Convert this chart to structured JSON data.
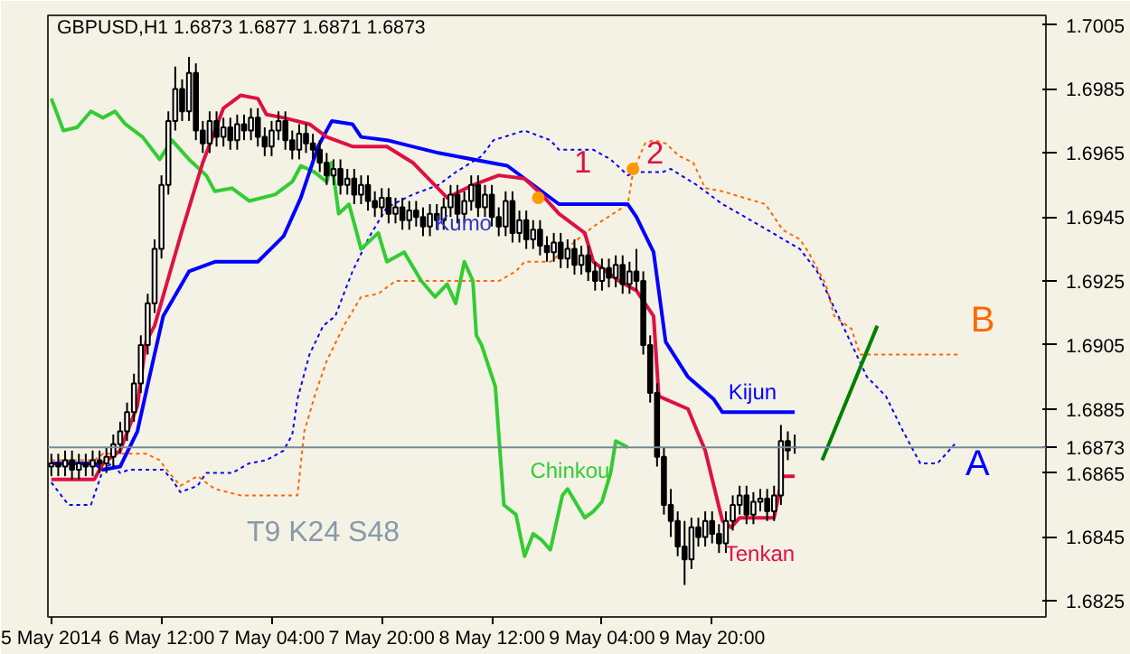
{
  "chart_data": {
    "type": "candlestick",
    "title": "GBPUSD,H1  1.6873 1.6877 1.6871 1.6873",
    "x": [
      "2014-05-05T20:00",
      "2014-05-05T21:00",
      "2014-05-05T22:00",
      "2014-05-05T23:00",
      "2014-05-06T00:00",
      "2014-05-06T01:00",
      "2014-05-06T02:00",
      "2014-05-06T03:00",
      "2014-05-06T04:00",
      "2014-05-06T05:00",
      "2014-05-06T06:00",
      "2014-05-06T07:00",
      "2014-05-06T08:00",
      "2014-05-06T09:00",
      "2014-05-06T10:00",
      "2014-05-06T11:00",
      "2014-05-06T12:00",
      "2014-05-06T13:00",
      "2014-05-06T14:00",
      "2014-05-06T15:00",
      "2014-05-06T16:00",
      "2014-05-06T17:00",
      "2014-05-06T18:00",
      "2014-05-06T19:00",
      "2014-05-06T20:00",
      "2014-05-06T21:00",
      "2014-05-06T22:00",
      "2014-05-06T23:00",
      "2014-05-07T00:00",
      "2014-05-07T01:00",
      "2014-05-07T02:00",
      "2014-05-07T03:00",
      "2014-05-07T04:00",
      "2014-05-07T05:00",
      "2014-05-07T06:00",
      "2014-05-07T07:00",
      "2014-05-07T08:00",
      "2014-05-07T09:00",
      "2014-05-07T10:00",
      "2014-05-07T11:00",
      "2014-05-07T12:00",
      "2014-05-07T13:00",
      "2014-05-07T14:00",
      "2014-05-07T15:00",
      "2014-05-07T16:00",
      "2014-05-07T17:00",
      "2014-05-07T18:00",
      "2014-05-07T19:00",
      "2014-05-07T20:00",
      "2014-05-07T21:00",
      "2014-05-07T22:00",
      "2014-05-07T23:00",
      "2014-05-08T00:00",
      "2014-05-08T01:00",
      "2014-05-08T02:00",
      "2014-05-08T03:00",
      "2014-05-08T04:00",
      "2014-05-08T05:00",
      "2014-05-08T06:00",
      "2014-05-08T07:00",
      "2014-05-08T08:00",
      "2014-05-08T09:00",
      "2014-05-08T10:00",
      "2014-05-08T11:00",
      "2014-05-08T12:00",
      "2014-05-08T13:00",
      "2014-05-08T14:00",
      "2014-05-08T15:00",
      "2014-05-08T16:00",
      "2014-05-08T17:00",
      "2014-05-08T18:00",
      "2014-05-08T19:00",
      "2014-05-08T20:00",
      "2014-05-08T21:00",
      "2014-05-08T22:00",
      "2014-05-08T23:00",
      "2014-05-09T00:00",
      "2014-05-09T01:00",
      "2014-05-09T02:00",
      "2014-05-09T03:00",
      "2014-05-09T04:00",
      "2014-05-09T05:00",
      "2014-05-09T06:00",
      "2014-05-09T07:00",
      "2014-05-09T08:00",
      "2014-05-09T09:00",
      "2014-05-09T10:00",
      "2014-05-09T11:00",
      "2014-05-09T12:00",
      "2014-05-09T13:00",
      "2014-05-09T14:00",
      "2014-05-09T15:00",
      "2014-05-09T16:00",
      "2014-05-09T17:00",
      "2014-05-09T18:00",
      "2014-05-09T19:00",
      "2014-05-09T20:00",
      "2014-05-09T21:00",
      "2014-05-09T22:00",
      "2014-05-09T23:00",
      "2014-05-10T00:00",
      "2014-05-10T01:00",
      "2014-05-10T02:00",
      "2014-05-10T03:00",
      "2014-05-10T04:00",
      "2014-05-10T05:00",
      "2014-05-10T06:00",
      "2014-05-10T07:00",
      "2014-05-10T08:00"
    ],
    "ohlc": [
      [
        1.6867,
        1.6871,
        1.6864,
        1.6868
      ],
      [
        1.6868,
        1.6871,
        1.6864,
        1.6867
      ],
      [
        1.6867,
        1.6872,
        1.6864,
        1.6869
      ],
      [
        1.6869,
        1.6872,
        1.6863,
        1.6866
      ],
      [
        1.6866,
        1.6871,
        1.6863,
        1.6868
      ],
      [
        1.6868,
        1.6871,
        1.6864,
        1.6867
      ],
      [
        1.6867,
        1.6872,
        1.6864,
        1.6869
      ],
      [
        1.6869,
        1.6872,
        1.6865,
        1.6868
      ],
      [
        1.6868,
        1.6873,
        1.6865,
        1.687
      ],
      [
        1.687,
        1.6877,
        1.6867,
        1.6874
      ],
      [
        1.6874,
        1.6881,
        1.6871,
        1.6878
      ],
      [
        1.6878,
        1.6887,
        1.6875,
        1.6884
      ],
      [
        1.6884,
        1.6896,
        1.6881,
        1.6893
      ],
      [
        1.6893,
        1.6908,
        1.689,
        1.6905
      ],
      [
        1.6905,
        1.6921,
        1.6902,
        1.6918
      ],
      [
        1.6918,
        1.6938,
        1.6915,
        1.6935
      ],
      [
        1.6935,
        1.6958,
        1.6932,
        1.6955
      ],
      [
        1.6955,
        1.6978,
        1.6952,
        1.6975
      ],
      [
        1.6975,
        1.6992,
        1.6972,
        1.6985
      ],
      [
        1.6985,
        1.6988,
        1.6975,
        1.6978
      ],
      [
        1.6978,
        1.6995,
        1.6975,
        1.699
      ],
      [
        1.699,
        1.6993,
        1.6969,
        1.6972
      ],
      [
        1.6972,
        1.6975,
        1.6965,
        1.6968
      ],
      [
        1.6968,
        1.6978,
        1.6965,
        1.6975
      ],
      [
        1.6975,
        1.6978,
        1.6967,
        1.697
      ],
      [
        1.697,
        1.6976,
        1.6967,
        1.6973
      ],
      [
        1.6973,
        1.6976,
        1.6966,
        1.6969
      ],
      [
        1.6969,
        1.6977,
        1.6966,
        1.6974
      ],
      [
        1.6974,
        1.6977,
        1.6969,
        1.6972
      ],
      [
        1.6972,
        1.6979,
        1.6969,
        1.6976
      ],
      [
        1.6976,
        1.6979,
        1.6967,
        1.697
      ],
      [
        1.697,
        1.6973,
        1.6964,
        1.6967
      ],
      [
        1.6967,
        1.6975,
        1.6964,
        1.6972
      ],
      [
        1.6972,
        1.6978,
        1.6969,
        1.6975
      ],
      [
        1.6975,
        1.6978,
        1.6966,
        1.6969
      ],
      [
        1.6969,
        1.6972,
        1.6963,
        1.6966
      ],
      [
        1.6966,
        1.6974,
        1.6963,
        1.6971
      ],
      [
        1.6971,
        1.6974,
        1.6965,
        1.6968
      ],
      [
        1.6968,
        1.6971,
        1.6963,
        1.6966
      ],
      [
        1.6966,
        1.6969,
        1.6959,
        1.6962
      ],
      [
        1.6962,
        1.6965,
        1.6955,
        1.6958
      ],
      [
        1.6958,
        1.6963,
        1.6955,
        1.696
      ],
      [
        1.696,
        1.6963,
        1.6952,
        1.6955
      ],
      [
        1.6955,
        1.696,
        1.6952,
        1.6957
      ],
      [
        1.6957,
        1.696,
        1.6949,
        1.6952
      ],
      [
        1.6952,
        1.6958,
        1.6949,
        1.6955
      ],
      [
        1.6955,
        1.6958,
        1.6947,
        1.695
      ],
      [
        1.695,
        1.6953,
        1.6945,
        1.6948
      ],
      [
        1.6948,
        1.6954,
        1.6945,
        1.6951
      ],
      [
        1.6951,
        1.6954,
        1.6943,
        1.6946
      ],
      [
        1.6946,
        1.6951,
        1.6943,
        1.6948
      ],
      [
        1.6948,
        1.6951,
        1.6941,
        1.6944
      ],
      [
        1.6944,
        1.695,
        1.6941,
        1.6947
      ],
      [
        1.6947,
        1.695,
        1.6942,
        1.6945
      ],
      [
        1.6945,
        1.6948,
        1.6939,
        1.6942
      ],
      [
        1.6942,
        1.6949,
        1.6939,
        1.6946
      ],
      [
        1.6946,
        1.6949,
        1.6941,
        1.6944
      ],
      [
        1.6944,
        1.6951,
        1.6941,
        1.6948
      ],
      [
        1.6948,
        1.6955,
        1.6945,
        1.6952
      ],
      [
        1.6952,
        1.6955,
        1.6943,
        1.6946
      ],
      [
        1.6946,
        1.6953,
        1.6943,
        1.695
      ],
      [
        1.695,
        1.6958,
        1.6947,
        1.6955
      ],
      [
        1.6955,
        1.6958,
        1.6945,
        1.6948
      ],
      [
        1.6948,
        1.6955,
        1.6945,
        1.6952
      ],
      [
        1.6952,
        1.6955,
        1.6942,
        1.6945
      ],
      [
        1.6945,
        1.6948,
        1.6939,
        1.6942
      ],
      [
        1.6942,
        1.6953,
        1.6939,
        1.695
      ],
      [
        1.695,
        1.6953,
        1.6937,
        1.694
      ],
      [
        1.694,
        1.6947,
        1.6937,
        1.6944
      ],
      [
        1.6944,
        1.6947,
        1.6935,
        1.6938
      ],
      [
        1.6938,
        1.6944,
        1.6935,
        1.6941
      ],
      [
        1.6941,
        1.6944,
        1.6933,
        1.6936
      ],
      [
        1.6936,
        1.6939,
        1.6931,
        1.6934
      ],
      [
        1.6934,
        1.694,
        1.6931,
        1.6937
      ],
      [
        1.6937,
        1.694,
        1.6929,
        1.6932
      ],
      [
        1.6932,
        1.6938,
        1.6929,
        1.6935
      ],
      [
        1.6935,
        1.6938,
        1.6927,
        1.693
      ],
      [
        1.693,
        1.6936,
        1.6927,
        1.6933
      ],
      [
        1.6933,
        1.6936,
        1.6925,
        1.6928
      ],
      [
        1.6928,
        1.6931,
        1.6922,
        1.6925
      ],
      [
        1.6925,
        1.6932,
        1.6922,
        1.6929
      ],
      [
        1.6929,
        1.6932,
        1.6923,
        1.6926
      ],
      [
        1.6926,
        1.6933,
        1.6923,
        1.693
      ],
      [
        1.693,
        1.6933,
        1.6921,
        1.6924
      ],
      [
        1.6924,
        1.6931,
        1.6921,
        1.6928
      ],
      [
        1.6928,
        1.6935,
        1.6922,
        1.6925
      ],
      [
        1.6925,
        1.6928,
        1.6902,
        1.6905
      ],
      [
        1.6905,
        1.6908,
        1.6887,
        1.689
      ],
      [
        1.689,
        1.6893,
        1.6867,
        1.687
      ],
      [
        1.687,
        1.6873,
        1.6852,
        1.6855
      ],
      [
        1.6855,
        1.686,
        1.6845,
        1.685
      ],
      [
        1.685,
        1.6853,
        1.6839,
        1.6842
      ],
      [
        1.6842,
        1.685,
        1.683,
        1.6838
      ],
      [
        1.6838,
        1.6851,
        1.6835,
        1.6848
      ],
      [
        1.6848,
        1.6851,
        1.6842,
        1.6845
      ],
      [
        1.6845,
        1.6853,
        1.6842,
        1.685
      ],
      [
        1.685,
        1.6853,
        1.6843,
        1.6846
      ],
      [
        1.6846,
        1.6849,
        1.684,
        1.6843
      ],
      [
        1.6843,
        1.6853,
        1.684,
        1.685
      ],
      [
        1.685,
        1.6858,
        1.6847,
        1.6855
      ],
      [
        1.6855,
        1.6861,
        1.6852,
        1.6858
      ],
      [
        1.6858,
        1.6861,
        1.6849,
        1.6852
      ],
      [
        1.6852,
        1.6859,
        1.6849,
        1.6856
      ],
      [
        1.6856,
        1.686,
        1.6853,
        1.6857
      ],
      [
        1.6857,
        1.686,
        1.685,
        1.6853
      ],
      [
        1.6853,
        1.6861,
        1.685,
        1.6858
      ],
      [
        1.6858,
        1.688,
        1.6855,
        1.6875
      ],
      [
        1.6875,
        1.6878,
        1.6869,
        1.6872
      ],
      [
        1.6873,
        1.6877,
        1.6871,
        1.6873
      ]
    ],
    "series": [
      {
        "name": "A",
        "type": "line",
        "color": "#0000ff",
        "line_style": "dashed",
        "x": [
          "2014-05-05T20:00",
          "2014-05-05T22:30",
          "2014-05-06T01:45",
          "2014-05-06T03:30",
          "2014-05-06T04:45",
          "2014-05-06T06:00",
          "2014-05-06T07:15",
          "2014-05-06T12:15",
          "2014-05-06T13:30",
          "2014-05-06T14:45",
          "2014-05-06T17:15",
          "2014-05-06T18:30",
          "2014-05-06T22:15",
          "2014-05-07T00:45",
          "2014-05-07T03:15",
          "2014-05-07T05:45",
          "2014-05-07T07:00",
          "2014-05-07T07:45",
          "2014-05-07T09:30",
          "2014-05-07T11:30",
          "2014-05-07T13:15",
          "2014-05-07T15:45",
          "2014-05-07T18:15",
          "2014-05-07T20:45",
          "2014-05-08T00:30",
          "2014-05-08T04:15",
          "2014-05-08T06:45",
          "2014-05-08T10:30",
          "2014-05-08T12:15",
          "2014-05-08T16:45",
          "2014-05-08T20:30",
          "2014-05-08T21:45",
          "2014-05-09T00:15",
          "2014-05-09T02:45",
          "2014-05-09T05:15",
          "2014-05-09T07:45",
          "2014-05-09T09:00",
          "2014-05-09T11:30",
          "2014-05-09T12:45",
          "2014-05-09T14:00",
          "2014-05-09T17:45",
          "2014-05-09T21:30",
          "2014-05-10T00:00",
          "2014-05-10T08:45",
          "2014-05-10T11:15",
          "2014-05-10T13:00",
          "2014-05-10T15:00",
          "2014-05-10T18:30",
          "2014-05-10T21:15",
          "2014-05-10T23:45",
          "2014-05-11T02:15",
          "2014-05-11T04:45",
          "2014-05-11T07:15"
        ],
        "values": [
          1.6862,
          1.6855,
          1.6855,
          1.6866,
          1.6868,
          1.6865,
          1.6866,
          1.6866,
          1.6863,
          1.6859,
          1.6861,
          1.6865,
          1.6865,
          1.6868,
          1.6869,
          1.6872,
          1.6877,
          1.6888,
          1.6902,
          1.6911,
          1.6914,
          1.6928,
          1.6939,
          1.6948,
          1.6952,
          1.6955,
          1.6959,
          1.6964,
          1.6969,
          1.6972,
          1.6969,
          1.6966,
          1.6966,
          1.6966,
          1.6963,
          1.6958,
          1.6959,
          1.6959,
          1.6959,
          1.696,
          1.6955,
          1.6949,
          1.6946,
          1.6935,
          1.6928,
          1.692,
          1.6911,
          1.6895,
          1.6889,
          1.6878,
          1.6868,
          1.6868,
          1.6874
        ]
      },
      {
        "name": "B",
        "type": "line",
        "color": "#ff6600",
        "line_style": "dashed",
        "x": [
          "2014-05-05T20:00",
          "2014-05-06T02:15",
          "2014-05-06T03:30",
          "2014-05-06T09:45",
          "2014-05-06T11:45",
          "2014-05-06T12:45",
          "2014-05-06T14:45",
          "2014-05-06T17:15",
          "2014-05-06T19:45",
          "2014-05-06T23:30",
          "2014-05-07T07:45",
          "2014-05-07T08:45",
          "2014-05-07T10:15",
          "2014-05-07T12:00",
          "2014-05-07T14:30",
          "2014-05-07T17:00",
          "2014-05-07T19:30",
          "2014-05-07T22:00",
          "2014-05-08T13:00",
          "2014-05-08T15:30",
          "2014-05-08T16:45",
          "2014-05-08T20:30",
          "2014-05-09T02:45",
          "2014-05-09T07:45",
          "2014-05-09T08:30",
          "2014-05-09T10:15",
          "2014-05-09T11:30",
          "2014-05-09T13:15",
          "2014-05-09T15:15",
          "2014-05-09T17:15",
          "2014-05-09T19:00",
          "2014-05-09T21:30",
          "2014-05-10T03:45",
          "2014-05-10T06:15",
          "2014-05-10T08:45",
          "2014-05-10T10:00",
          "2014-05-10T12:30",
          "2014-05-10T13:45",
          "2014-05-10T16:15",
          "2014-05-10T17:30",
          "2014-05-11T08:00"
        ],
        "values": [
          1.6869,
          1.6869,
          1.6871,
          1.6871,
          1.6869,
          1.6866,
          1.6861,
          1.6864,
          1.686,
          1.6858,
          1.6858,
          1.6878,
          1.6889,
          1.69,
          1.6911,
          1.692,
          1.6921,
          1.6925,
          1.6925,
          1.6928,
          1.6931,
          1.6931,
          1.6942,
          1.6949,
          1.6959,
          1.6968,
          1.6969,
          1.6968,
          1.6964,
          1.6962,
          1.6954,
          1.6953,
          1.6949,
          1.6941,
          1.6938,
          1.6934,
          1.6924,
          1.6914,
          1.691,
          1.6902,
          1.6902
        ]
      },
      {
        "name": "Chinkou",
        "type": "line",
        "color": "#33cc33",
        "x": [
          "2014-05-05T20:00",
          "2014-05-05T21:45",
          "2014-05-05T23:45",
          "2014-05-06T01:45",
          "2014-05-06T03:30",
          "2014-05-06T05:15",
          "2014-05-06T06:45",
          "2014-05-06T09:15",
          "2014-05-06T11:45",
          "2014-05-06T13:30",
          "2014-05-06T16:00",
          "2014-05-06T18:30",
          "2014-05-06T19:45",
          "2014-05-06T22:15",
          "2014-05-07T00:45",
          "2014-05-07T04:30",
          "2014-05-07T07:00",
          "2014-05-07T08:15",
          "2014-05-07T10:15",
          "2014-05-07T12:00",
          "2014-05-07T12:45",
          "2014-05-07T13:45",
          "2014-05-07T15:15",
          "2014-05-07T17:00",
          "2014-05-07T19:30",
          "2014-05-07T20:45",
          "2014-05-07T23:15",
          "2014-05-08T01:45",
          "2014-05-08T03:45",
          "2014-05-08T05:30",
          "2014-05-08T06:45",
          "2014-05-08T08:00",
          "2014-05-08T09:15",
          "2014-05-08T09:45",
          "2014-05-08T10:30",
          "2014-05-08T12:30",
          "2014-05-08T13:45",
          "2014-05-08T15:30",
          "2014-05-08T16:45",
          "2014-05-08T18:00",
          "2014-05-08T19:15",
          "2014-05-08T20:30",
          "2014-05-08T22:15",
          "2014-05-08T23:00",
          "2014-05-09T01:30",
          "2014-05-09T02:45",
          "2014-05-09T04:00",
          "2014-05-09T05:15",
          "2014-05-09T06:00",
          "2014-05-09T07:45"
        ],
        "values": [
          1.6982,
          1.6972,
          1.6973,
          1.6978,
          1.6976,
          1.6978,
          1.6974,
          1.697,
          1.6963,
          1.6969,
          1.6963,
          1.6958,
          1.6953,
          1.6954,
          1.695,
          1.6952,
          1.6956,
          1.6961,
          1.6959,
          1.6956,
          1.6962,
          1.6946,
          1.6949,
          1.6935,
          1.694,
          1.6931,
          1.6934,
          1.6925,
          1.692,
          1.6924,
          1.6918,
          1.6931,
          1.6925,
          1.6908,
          1.6905,
          1.6892,
          1.6855,
          1.6852,
          1.6839,
          1.6846,
          1.6844,
          1.6841,
          1.6858,
          1.686,
          1.6851,
          1.6853,
          1.6856,
          1.6865,
          1.6875,
          1.6873
        ]
      },
      {
        "name": "Kijun",
        "type": "line",
        "color": "#0000ff",
        "x": [
          "2014-05-05T20:00",
          "2014-05-06T02:15",
          "2014-05-06T03:30",
          "2014-05-06T06:00",
          "2014-05-06T08:30",
          "2014-05-06T10:15",
          "2014-05-06T12:15",
          "2014-05-06T16:00",
          "2014-05-06T19:45",
          "2014-05-07T02:00",
          "2014-05-07T05:45",
          "2014-05-07T08:15",
          "2014-05-07T10:45",
          "2014-05-07T12:45",
          "2014-05-07T15:45",
          "2014-05-07T17:00",
          "2014-05-07T20:45",
          "2014-05-08T04:15",
          "2014-05-08T11:45",
          "2014-05-08T14:15",
          "2014-05-08T18:00",
          "2014-05-08T21:45",
          "2014-05-09T07:45",
          "2014-05-09T09:00",
          "2014-05-09T11:30",
          "2014-05-09T13:15",
          "2014-05-09T16:30",
          "2014-05-09T20:15",
          "2014-05-09T21:30",
          "2014-05-10T08:00"
        ],
        "values": [
          1.6868,
          1.6868,
          1.6866,
          1.6867,
          1.6878,
          1.6895,
          1.6914,
          1.6928,
          1.6931,
          1.6931,
          1.6939,
          1.6951,
          1.6967,
          1.6975,
          1.6974,
          1.697,
          1.6969,
          1.6965,
          1.6962,
          1.6961,
          1.6955,
          1.6949,
          1.6949,
          1.6945,
          1.6934,
          1.6906,
          1.6895,
          1.6888,
          1.6884,
          1.6884
        ]
      },
      {
        "name": "Tenkan",
        "type": "line",
        "color": "#dd1144",
        "x": [
          "2014-05-05T20:00",
          "2014-05-06T02:15",
          "2014-05-06T03:30",
          "2014-05-06T06:00",
          "2014-05-06T08:30",
          "2014-05-06T09:45",
          "2014-05-06T11:00",
          "2014-05-06T14:45",
          "2014-05-06T18:00",
          "2014-05-06T21:00",
          "2014-05-06T23:30",
          "2014-05-07T02:00",
          "2014-05-07T03:15",
          "2014-05-07T05:45",
          "2014-05-07T09:30",
          "2014-05-07T12:00",
          "2014-05-07T15:45",
          "2014-05-07T20:45",
          "2014-05-08T00:30",
          "2014-05-08T05:30",
          "2014-05-08T09:15",
          "2014-05-08T13:00",
          "2014-05-08T16:45",
          "2014-05-08T19:15",
          "2014-05-08T21:45",
          "2014-05-09T01:30",
          "2014-05-09T02:45",
          "2014-05-09T06:30",
          "2014-05-09T09:00",
          "2014-05-09T11:30",
          "2014-05-09T12:15",
          "2014-05-09T16:30",
          "2014-05-09T19:00",
          "2014-05-09T21:30",
          "2014-05-09T22:45",
          "2014-05-10T00:00",
          "2014-05-10T05:00",
          "2014-05-10T06:15",
          "2014-05-10T08:00"
        ],
        "values": [
          1.6863,
          1.6863,
          1.6868,
          1.6872,
          1.6886,
          1.6906,
          1.6911,
          1.6939,
          1.6962,
          1.6979,
          1.6983,
          1.6982,
          1.6977,
          1.6976,
          1.6974,
          1.697,
          1.6967,
          1.6967,
          1.6962,
          1.6951,
          1.6955,
          1.6958,
          1.6957,
          1.6952,
          1.6946,
          1.694,
          1.6931,
          1.6925,
          1.6922,
          1.6914,
          1.6889,
          1.6885,
          1.6872,
          1.685,
          1.6848,
          1.6851,
          1.6851,
          1.6864,
          1.6864
        ]
      },
      {
        "type": "line",
        "color": "#008000",
        "x": [
          "2014-05-10T12:00",
          "2014-05-10T20:00"
        ],
        "values": [
          1.6869,
          1.6911
        ]
      },
      {
        "type": "scatter",
        "color": "#ff9900",
        "marker": "circle",
        "x": [
          "2014-05-08T18:45",
          "2014-05-09T08:30"
        ],
        "values": [
          1.6951,
          1.696
        ]
      }
    ],
    "annotations": [
      "1",
      "2",
      {
        "text": "Kumo",
        "x": "2014-05-08T03:45",
        "y": 1.6939
      },
      "T9 K24 S48"
    ],
    "ref_lines": [
      {
        "axis": "y",
        "value": 1.6873,
        "label": "1.6873",
        "color": "#778899"
      }
    ],
    "xlim": [
      "2014-05-05T19:30",
      "2014-05-11T20:30"
    ],
    "ylim": [
      1.682,
      1.7008
    ],
    "xticks": [
      {
        "value": "2014-05-05T20:00",
        "label": "5 May 2014"
      },
      {
        "value": "2014-05-06T12:00",
        "label": "6 May 12:00"
      },
      {
        "value": "2014-05-07T04:00",
        "label": "7 May 04:00"
      },
      {
        "value": "2014-05-07T20:00",
        "label": "7 May 20:00"
      },
      {
        "value": "2014-05-08T12:00",
        "label": "8 May 12:00"
      },
      {
        "value": "2014-05-09T04:00",
        "label": "9 May 04:00"
      },
      {
        "value": "2014-05-09T20:00",
        "label": "9 May 20:00"
      }
    ],
    "yticks": [
      1.7005,
      1.6985,
      1.6965,
      1.6945,
      1.6925,
      1.6905,
      1.6885,
      1.6865,
      1.6845,
      1.6825
    ],
    "grid": false
  }
}
